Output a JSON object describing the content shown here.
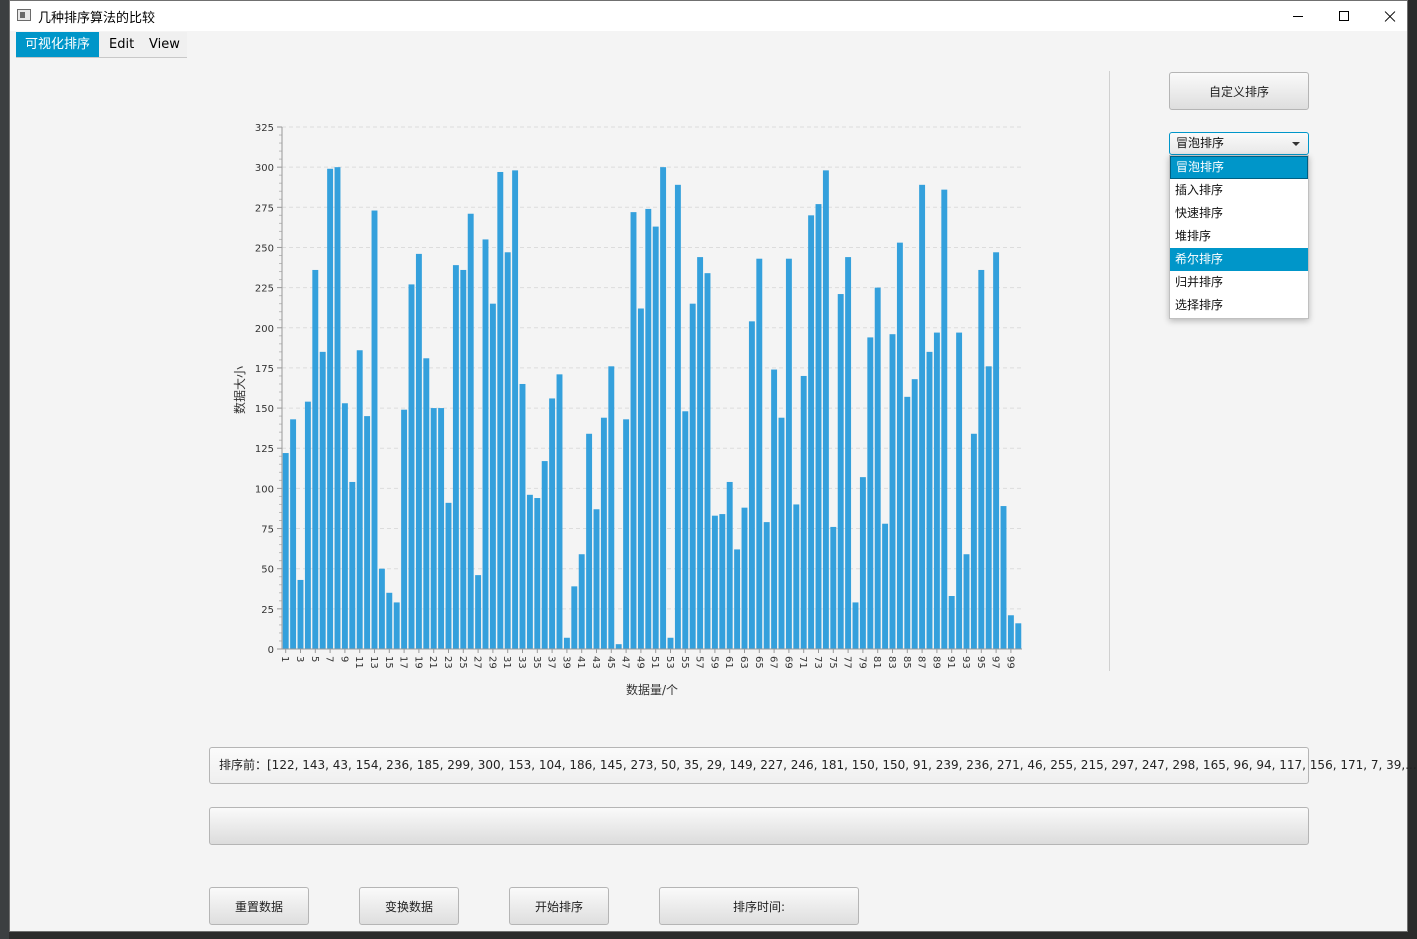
{
  "window": {
    "title": "几种排序算法的比较"
  },
  "menu": {
    "items": [
      "可视化排序",
      "Edit",
      "View"
    ]
  },
  "controls": {
    "custom_sort_button": "自定义排序",
    "algorithm_select": {
      "selected": "冒泡排序",
      "options": [
        "冒泡排序",
        "插入排序",
        "快速排序",
        "堆排序",
        "希尔排序",
        "归并排序",
        "选择排序"
      ],
      "highlighted": "希尔排序"
    },
    "before_text": "排序前：[122, 143, 43, 154, 236, 185, 299, 300, 153, 104, 186, 145, 273, 50, 35, 29, 149, 227, 246, 181, 150, 150, 91, 239, 236, 271, 46, 255, 215, 297, 247, 298, 165, 96, 94, 117, 156, 171, 7, 39,...",
    "after_text": "",
    "reset_button": "重置数据",
    "shuffle_button": "变换数据",
    "start_button": "开始排序",
    "time_label": "排序时间:"
  },
  "colors": {
    "bar": "#34a0dc",
    "accent": "#0096c9"
  },
  "chart_data": {
    "type": "bar",
    "xlabel": "数据量/个",
    "ylabel": "数据大小",
    "ylim": [
      0,
      325
    ],
    "yticks": [
      0,
      25,
      50,
      75,
      100,
      125,
      150,
      175,
      200,
      225,
      250,
      275,
      300,
      325
    ],
    "grid": true,
    "legend": "none",
    "categories": [
      1,
      2,
      3,
      4,
      5,
      6,
      7,
      8,
      9,
      10,
      11,
      12,
      13,
      14,
      15,
      16,
      17,
      18,
      19,
      20,
      21,
      22,
      23,
      24,
      25,
      26,
      27,
      28,
      29,
      30,
      31,
      32,
      33,
      34,
      35,
      36,
      37,
      38,
      39,
      40,
      41,
      42,
      43,
      44,
      45,
      46,
      47,
      48,
      49,
      50,
      51,
      52,
      53,
      54,
      55,
      56,
      57,
      58,
      59,
      60,
      61,
      62,
      63,
      64,
      65,
      66,
      67,
      68,
      69,
      70,
      71,
      72,
      73,
      74,
      75,
      76,
      77,
      78,
      79,
      80,
      81,
      82,
      83,
      84,
      85,
      86,
      87,
      88,
      89,
      90,
      91,
      92,
      93,
      94,
      95,
      96,
      97,
      98,
      99,
      100
    ],
    "xtick_labels": [
      1,
      3,
      5,
      7,
      9,
      11,
      13,
      15,
      17,
      19,
      21,
      23,
      25,
      27,
      29,
      31,
      33,
      35,
      37,
      39,
      41,
      43,
      45,
      47,
      49,
      51,
      53,
      55,
      57,
      59,
      61,
      63,
      65,
      67,
      69,
      71,
      73,
      75,
      77,
      79,
      81,
      83,
      85,
      87,
      89,
      91,
      93,
      95,
      97,
      99
    ],
    "values": [
      122,
      143,
      43,
      154,
      236,
      185,
      299,
      300,
      153,
      104,
      186,
      145,
      273,
      50,
      35,
      29,
      149,
      227,
      246,
      181,
      150,
      150,
      91,
      239,
      236,
      271,
      46,
      255,
      215,
      297,
      247,
      298,
      165,
      96,
      94,
      117,
      156,
      171,
      7,
      39,
      59,
      134,
      87,
      144,
      176,
      3,
      143,
      272,
      212,
      274,
      263,
      300,
      7,
      289,
      148,
      215,
      244,
      234,
      83,
      84,
      104,
      62,
      88,
      204,
      243,
      79,
      174,
      144,
      243,
      90,
      170,
      270,
      277,
      298,
      76,
      221,
      244,
      29,
      107,
      194,
      225,
      78,
      196,
      253,
      157,
      168,
      289,
      185,
      197,
      286,
      33,
      197,
      59,
      134,
      236,
      176,
      247,
      89,
      21,
      16
    ]
  }
}
